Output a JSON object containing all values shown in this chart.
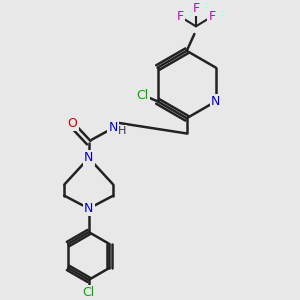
{
  "bg_color": "#e8e8e8",
  "atom_colors": {
    "N": "#0000cc",
    "O": "#cc0000",
    "Cl": "#00aa00",
    "F": "#cc00cc",
    "C": "#000000",
    "H": "#333333"
  },
  "bond_color": "#222222",
  "bond_width": 1.8
}
